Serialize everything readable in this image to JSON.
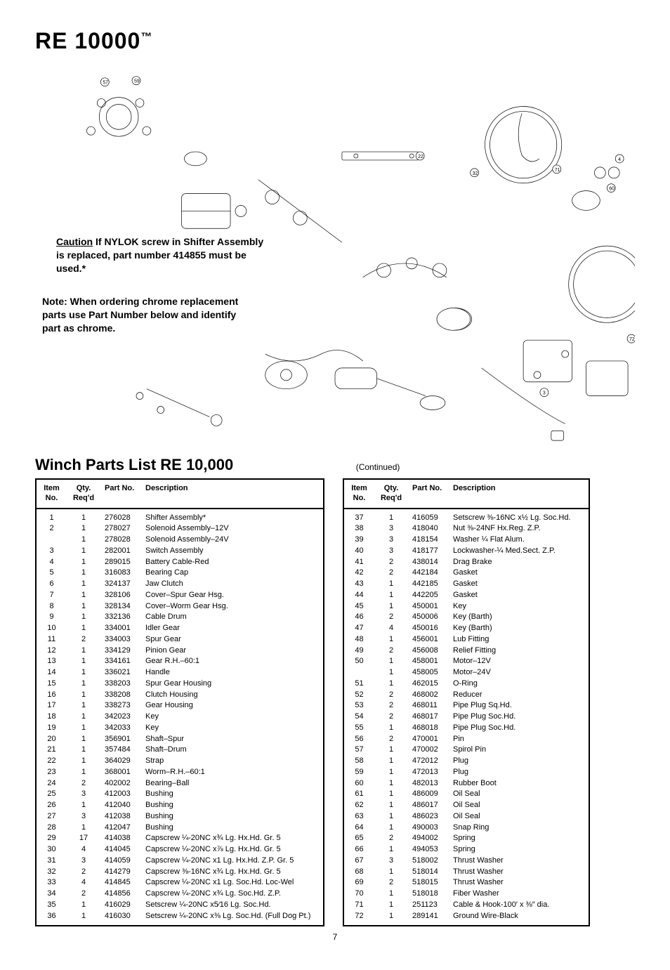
{
  "title": "RE 10000",
  "title_tm": "™",
  "caution_label": "Caution",
  "caution_text": " If NYLOK screw in Shifter Assembly is replaced, part number 414855 must be used.*",
  "note_label": "Note:",
  "note_text": " When ordering chrome replacement parts use Part Number below and identify part as chrome.",
  "list_title": "Winch Parts List RE 10,000",
  "continued": "(Continued)",
  "headers": {
    "item": "Item No.",
    "qty": "Qty. Req'd",
    "part": "Part No.",
    "desc": "Description"
  },
  "page_number": "7",
  "left_rows": [
    {
      "i": "1",
      "q": "1",
      "p": "276028",
      "d": "Shifter Assembly*"
    },
    {
      "i": "2",
      "q": "1",
      "p": "278027",
      "d": "Solenoid Assembly–12V"
    },
    {
      "i": "",
      "q": "1",
      "p": "278028",
      "d": "Solenoid Assembly–24V"
    },
    {
      "i": "3",
      "q": "1",
      "p": "282001",
      "d": "Switch Assembly"
    },
    {
      "i": "4",
      "q": "1",
      "p": "289015",
      "d": "Battery Cable-Red"
    },
    {
      "i": "5",
      "q": "1",
      "p": "316083",
      "d": "Bearing Cap"
    },
    {
      "i": "6",
      "q": "1",
      "p": "324137",
      "d": "Jaw Clutch"
    },
    {
      "i": "7",
      "q": "1",
      "p": "328106",
      "d": "Cover–Spur Gear Hsg."
    },
    {
      "i": "8",
      "q": "1",
      "p": "328134",
      "d": "Cover–Worm Gear Hsg."
    },
    {
      "i": "9",
      "q": "1",
      "p": "332136",
      "d": "Cable Drum"
    },
    {
      "i": "10",
      "q": "1",
      "p": "334001",
      "d": "Idler Gear"
    },
    {
      "i": "11",
      "q": "2",
      "p": "334003",
      "d": "Spur Gear"
    },
    {
      "i": "12",
      "q": "1",
      "p": "334129",
      "d": "Pinion Gear"
    },
    {
      "i": "13",
      "q": "1",
      "p": "334161",
      "d": "Gear R.H.–60:1"
    },
    {
      "i": "14",
      "q": "1",
      "p": "336021",
      "d": "Handle"
    },
    {
      "i": "15",
      "q": "1",
      "p": "338203",
      "d": "Spur Gear Housing"
    },
    {
      "i": "16",
      "q": "1",
      "p": "338208",
      "d": "Clutch Housing"
    },
    {
      "i": "17",
      "q": "1",
      "p": "338273",
      "d": "Gear Housing"
    },
    {
      "i": "18",
      "q": "1",
      "p": "342023",
      "d": "Key"
    },
    {
      "i": "19",
      "q": "1",
      "p": "342033",
      "d": "Key"
    },
    {
      "i": "20",
      "q": "1",
      "p": "356901",
      "d": "Shaft–Spur"
    },
    {
      "i": "21",
      "q": "1",
      "p": "357484",
      "d": "Shaft–Drum"
    },
    {
      "i": "22",
      "q": "1",
      "p": "364029",
      "d": "Strap"
    },
    {
      "i": "23",
      "q": "1",
      "p": "368001",
      "d": "Worm–R.H.–60:1"
    },
    {
      "i": "24",
      "q": "2",
      "p": "402002",
      "d": "Bearing–Ball"
    },
    {
      "i": "25",
      "q": "3",
      "p": "412003",
      "d": "Bushing"
    },
    {
      "i": "26",
      "q": "1",
      "p": "412040",
      "d": "Bushing"
    },
    {
      "i": "27",
      "q": "3",
      "p": "412038",
      "d": "Bushing"
    },
    {
      "i": "28",
      "q": "1",
      "p": "412047",
      "d": "Bushing"
    },
    {
      "i": "29",
      "q": "17",
      "p": "414038",
      "d": "Capscrew ¼-20NC x¾ Lg. Hx.Hd. Gr. 5"
    },
    {
      "i": "30",
      "q": "4",
      "p": "414045",
      "d": "Capscrew ¼-20NC x⅞ Lg. Hx.Hd. Gr. 5"
    },
    {
      "i": "31",
      "q": "3",
      "p": "414059",
      "d": "Capscrew ¼-20NC x1 Lg. Hx.Hd. Z.P. Gr. 5"
    },
    {
      "i": "32",
      "q": "2",
      "p": "414279",
      "d": "Capscrew ⅜-16NC x¾ Lg. Hx.Hd. Gr. 5"
    },
    {
      "i": "33",
      "q": "4",
      "p": "414845",
      "d": "Capscrew ¼-20NC x1 Lg. Soc.Hd. Loc-Wel"
    },
    {
      "i": "34",
      "q": "2",
      "p": "414856",
      "d": "Capscrew ¼-20NC x¾ Lg. Soc.Hd. Z.P."
    },
    {
      "i": "35",
      "q": "1",
      "p": "416029",
      "d": "Setscrew ¼-20NC x5⁄16 Lg. Soc.Hd."
    },
    {
      "i": "36",
      "q": "1",
      "p": "416030",
      "d": "Setscrew ¼-20NC x⅜ Lg. Soc.Hd. (Full Dog Pt.)"
    }
  ],
  "right_rows": [
    {
      "i": "37",
      "q": "1",
      "p": "416059",
      "d": "Setscrew ⅜-16NC x½ Lg. Soc.Hd."
    },
    {
      "i": "38",
      "q": "3",
      "p": "418040",
      "d": "Nut ⅜-24NF Hx.Reg. Z.P."
    },
    {
      "i": "39",
      "q": "3",
      "p": "418154",
      "d": "Washer ¼ Flat Alum."
    },
    {
      "i": "40",
      "q": "3",
      "p": "418177",
      "d": "Lockwasher-¼ Med.Sect. Z.P."
    },
    {
      "i": "41",
      "q": "2",
      "p": "438014",
      "d": "Drag Brake"
    },
    {
      "i": "42",
      "q": "2",
      "p": "442184",
      "d": "Gasket"
    },
    {
      "i": "43",
      "q": "1",
      "p": "442185",
      "d": "Gasket"
    },
    {
      "i": "44",
      "q": "1",
      "p": "442205",
      "d": "Gasket"
    },
    {
      "i": "45",
      "q": "1",
      "p": "450001",
      "d": "Key"
    },
    {
      "i": "46",
      "q": "2",
      "p": "450006",
      "d": "Key (Barth)"
    },
    {
      "i": "47",
      "q": "4",
      "p": "450016",
      "d": "Key (Barth)"
    },
    {
      "i": "48",
      "q": "1",
      "p": "456001",
      "d": "Lub Fitting"
    },
    {
      "i": "49",
      "q": "2",
      "p": "456008",
      "d": "Relief Fitting"
    },
    {
      "i": "50",
      "q": "1",
      "p": "458001",
      "d": "Motor–12V"
    },
    {
      "i": "",
      "q": "1",
      "p": "458005",
      "d": "Motor–24V"
    },
    {
      "i": "51",
      "q": "1",
      "p": "462015",
      "d": "O-Ring"
    },
    {
      "i": "52",
      "q": "2",
      "p": "468002",
      "d": "Reducer"
    },
    {
      "i": "53",
      "q": "2",
      "p": "468011",
      "d": "Pipe Plug Sq.Hd."
    },
    {
      "i": "54",
      "q": "2",
      "p": "468017",
      "d": "Pipe Plug Soc.Hd."
    },
    {
      "i": "55",
      "q": "1",
      "p": "468018",
      "d": "Pipe Plug Soc.Hd."
    },
    {
      "i": "56",
      "q": "2",
      "p": "470001",
      "d": "Pin"
    },
    {
      "i": "57",
      "q": "1",
      "p": "470002",
      "d": "Spirol Pin"
    },
    {
      "i": "58",
      "q": "1",
      "p": "472012",
      "d": "Plug"
    },
    {
      "i": "59",
      "q": "1",
      "p": "472013",
      "d": "Plug"
    },
    {
      "i": "60",
      "q": "1",
      "p": "482013",
      "d": "Rubber Boot"
    },
    {
      "i": "61",
      "q": "1",
      "p": "486009",
      "d": "Oil Seal"
    },
    {
      "i": "62",
      "q": "1",
      "p": "486017",
      "d": "Oil Seal"
    },
    {
      "i": "63",
      "q": "1",
      "p": "486023",
      "d": "Oil Seal"
    },
    {
      "i": "64",
      "q": "1",
      "p": "490003",
      "d": "Snap Ring"
    },
    {
      "i": "65",
      "q": "2",
      "p": "494002",
      "d": "Spring"
    },
    {
      "i": "66",
      "q": "1",
      "p": "494053",
      "d": "Spring"
    },
    {
      "i": "67",
      "q": "3",
      "p": "518002",
      "d": "Thrust Washer"
    },
    {
      "i": "68",
      "q": "1",
      "p": "518014",
      "d": "Thrust Washer"
    },
    {
      "i": "69",
      "q": "2",
      "p": "518015",
      "d": "Thrust Washer"
    },
    {
      "i": "70",
      "q": "1",
      "p": "518018",
      "d": "Fiber Washer"
    },
    {
      "i": "71",
      "q": "1",
      "p": "251123",
      "d": "Cable & Hook-100′ x ⅜″ dia."
    },
    {
      "i": "72",
      "q": "1",
      "p": "289141",
      "d": "Ground Wire-Black"
    }
  ]
}
